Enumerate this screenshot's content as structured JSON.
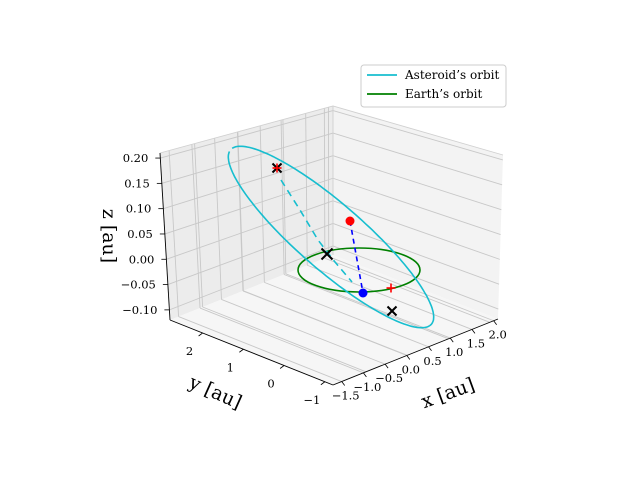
{
  "chart_data": {
    "type": "3d-line",
    "title": "",
    "xlabel": "x [au]",
    "ylabel": "y [au]",
    "zlabel": "z [au]",
    "xlim": [
      -1.7,
      2.1
    ],
    "ylim": [
      -1.2,
      2.8
    ],
    "zlim": [
      -0.12,
      0.21
    ],
    "xticks": [
      "−1.5",
      "−1.0",
      "−0.5",
      "0.0",
      "0.5",
      "1.0",
      "1.5",
      "2.0"
    ],
    "yticks": [
      "−1",
      "0",
      "1",
      "2"
    ],
    "zticks": [
      "0.20",
      "0.15",
      "0.10",
      "0.05",
      "0.00",
      "−0.05",
      "−0.10"
    ],
    "legend": {
      "position": "upper-right",
      "entries": [
        {
          "label": "Asteroid’s orbit",
          "color": "#17becf"
        },
        {
          "label": "Earth’s orbit",
          "color": "#008000"
        }
      ]
    },
    "series": [
      {
        "name": "Asteroid’s orbit",
        "color": "#17becf",
        "style": "solid, dashed behind the ecliptic plane",
        "a": 1.3,
        "e": 0.55,
        "peak_z": 0.18
      },
      {
        "name": "Earth’s orbit",
        "color": "#008000",
        "style": "solid",
        "radius": 1.0,
        "z": 0.0
      }
    ],
    "markers": [
      {
        "type": "sun",
        "symbol": "x",
        "color": "#000000",
        "x": 0.0,
        "y": 0.0,
        "z": 0.0
      },
      {
        "type": "aphelion",
        "symbol": "x",
        "color": "#000000",
        "x": -0.25,
        "y": 1.9,
        "z": 0.18
      },
      {
        "type": "aphelion-projection",
        "symbol": "+",
        "color": "#ff0000",
        "x": -0.25,
        "y": 1.9,
        "z": 0.18
      },
      {
        "type": "perihelion",
        "symbol": "x",
        "color": "#000000",
        "x": 0.5,
        "y": -0.5,
        "z": -0.05
      },
      {
        "type": "asteroid",
        "symbol": "o",
        "color": "#ff0000",
        "x": 0.65,
        "y": 0.35,
        "z": 0.09
      },
      {
        "type": "earth",
        "symbol": "o",
        "color": "#0000ff",
        "x": 0.75,
        "y": -0.45,
        "z": 0.0
      },
      {
        "type": "earth-mark",
        "symbol": "+",
        "color": "#ff0000",
        "x": 0.95,
        "y": -0.35,
        "z": 0.0
      }
    ],
    "connector": {
      "from": "asteroid",
      "to": "earth",
      "color": "#0000ff",
      "style": "dashed"
    }
  }
}
